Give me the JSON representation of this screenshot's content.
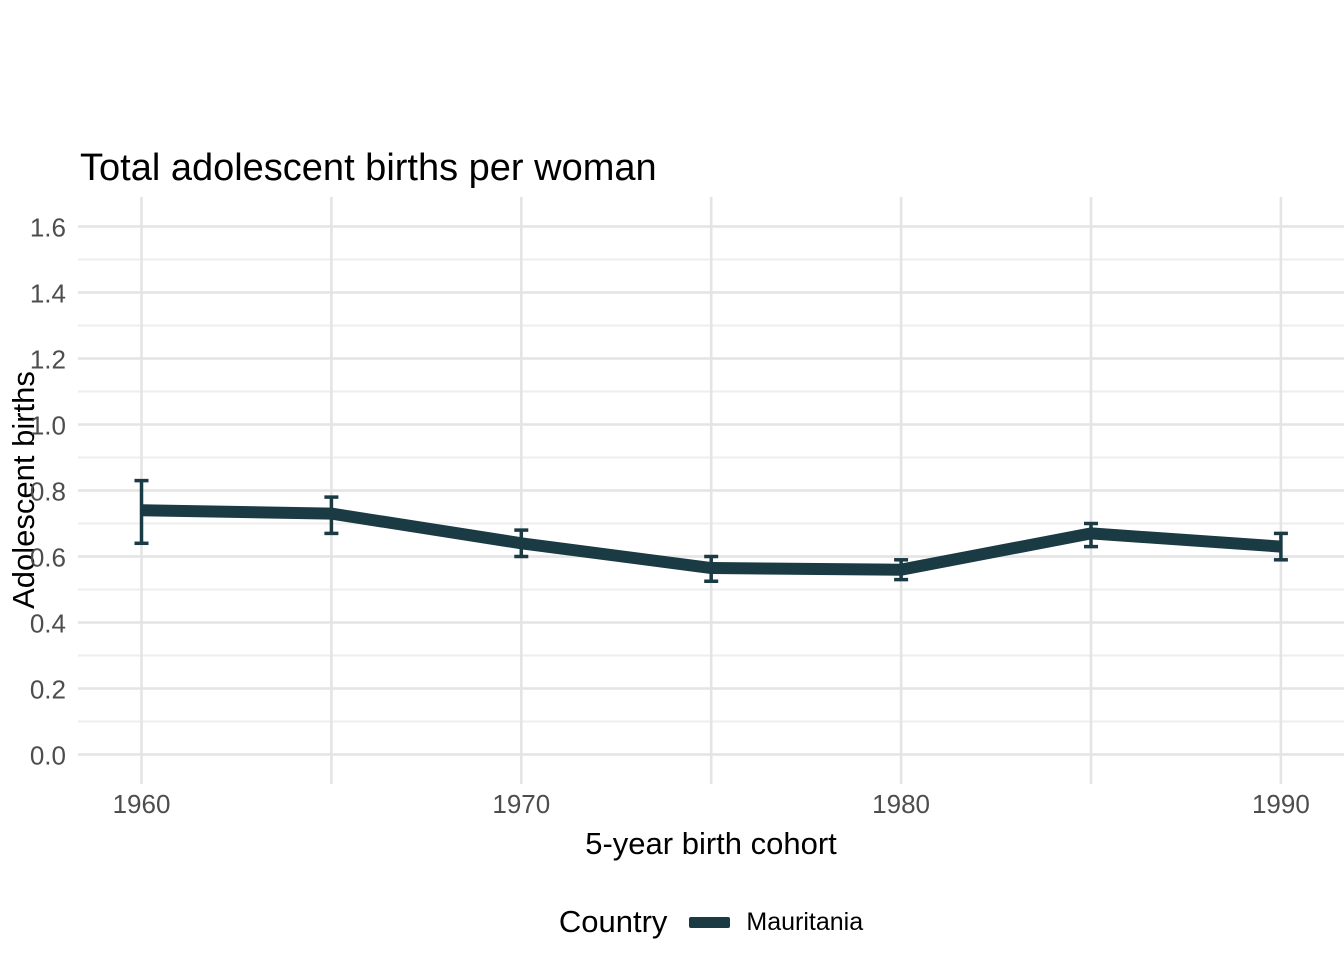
{
  "chart_data": {
    "type": "line",
    "title": "Total adolescent births per woman",
    "xlabel": "5-year birth cohort",
    "ylabel": "Adolescent births",
    "x": [
      1960,
      1965,
      1970,
      1975,
      1980,
      1985,
      1990
    ],
    "series": [
      {
        "name": "Mauritania",
        "values": [
          0.74,
          0.73,
          0.64,
          0.565,
          0.56,
          0.67,
          0.63
        ],
        "ymin": [
          0.64,
          0.67,
          0.6,
          0.525,
          0.53,
          0.63,
          0.59
        ],
        "ymax": [
          0.83,
          0.78,
          0.68,
          0.6,
          0.59,
          0.7,
          0.67
        ],
        "color": "#1a3a44"
      }
    ],
    "x_breaks": [
      {
        "x": 1960,
        "label": "1960"
      },
      {
        "x": 1965,
        "label": ""
      },
      {
        "x": 1970,
        "label": "1970"
      },
      {
        "x": 1975,
        "label": ""
      },
      {
        "x": 1980,
        "label": "1980"
      },
      {
        "x": 1985,
        "label": ""
      },
      {
        "x": 1990,
        "label": "1990"
      }
    ],
    "y_tick_labels": [
      "0.0",
      "0.2",
      "0.4",
      "0.6",
      "0.8",
      "1.0",
      "1.2",
      "1.4",
      "1.6"
    ],
    "y_minor": [
      0.1,
      0.3,
      0.5,
      0.7,
      0.9,
      1.1,
      1.3,
      1.5
    ],
    "xlim": [
      1958.3,
      1991.7
    ],
    "ylim": [
      -0.09,
      1.69
    ],
    "grid": "on",
    "legend": {
      "title": "Country",
      "position": "bottom",
      "entries": [
        {
          "label": "Mauritania",
          "color": "#1a3a44"
        }
      ]
    },
    "colors": {
      "line": "#1a3a44",
      "grid_major": "#e4e4e4",
      "grid_minor": "#eeeeee",
      "tick_text": "#4d4d4d",
      "title_text": "#000000",
      "background": "#ffffff"
    }
  }
}
